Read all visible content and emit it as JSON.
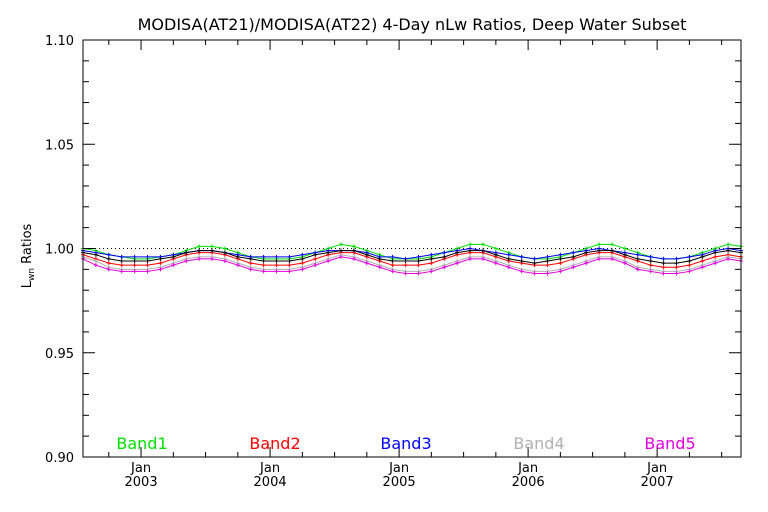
{
  "chart_data": {
    "type": "line",
    "title": "MODISA(AT21)/MODISA(AT22) 4-Day nLw Ratios, Deep Water Subset",
    "ylabel": "Lwn Ratios",
    "ylabel_main": "L",
    "ylabel_sub": "wn",
    "ylabel_rest": " Ratios",
    "xlabel": "",
    "ylim": [
      0.9,
      1.1
    ],
    "xlim": [
      2002.55,
      2007.65
    ],
    "yticks": [
      "0.90",
      "0.95",
      "1.00",
      "1.05",
      "1.10"
    ],
    "xticks": [
      {
        "month": "Jan",
        "year": "2003",
        "value": 2003.0
      },
      {
        "month": "Jan",
        "year": "2004",
        "value": 2004.0
      },
      {
        "month": "Jan",
        "year": "2005",
        "value": 2005.0
      },
      {
        "month": "Jan",
        "year": "2006",
        "value": 2006.0
      },
      {
        "month": "Jan",
        "year": "2007",
        "value": 2007.0
      }
    ],
    "reference_line": 1.0,
    "legend_placement": "bottom",
    "grid": false,
    "x": [
      2002.55,
      2002.65,
      2002.75,
      2002.85,
      2002.95,
      2003.05,
      2003.15,
      2003.25,
      2003.35,
      2003.45,
      2003.55,
      2003.65,
      2003.75,
      2003.85,
      2003.95,
      2004.05,
      2004.15,
      2004.25,
      2004.35,
      2004.45,
      2004.55,
      2004.65,
      2004.75,
      2004.85,
      2004.95,
      2005.05,
      2005.15,
      2005.25,
      2005.35,
      2005.45,
      2005.55,
      2005.65,
      2005.75,
      2005.85,
      2005.95,
      2006.05,
      2006.15,
      2006.25,
      2006.35,
      2006.45,
      2006.55,
      2006.65,
      2006.75,
      2006.85,
      2006.95,
      2007.05,
      2007.15,
      2007.25,
      2007.35,
      2007.45,
      2007.55,
      2007.65
    ],
    "series": [
      {
        "name": "Band1",
        "color": "#00e000",
        "values": [
          1.0,
          0.999,
          0.997,
          0.996,
          0.995,
          0.995,
          0.996,
          0.997,
          0.999,
          1.001,
          1.001,
          1.0,
          0.998,
          0.996,
          0.995,
          0.995,
          0.995,
          0.996,
          0.998,
          1.0,
          1.002,
          1.001,
          0.999,
          0.997,
          0.995,
          0.995,
          0.995,
          0.996,
          0.998,
          1.0,
          1.002,
          1.002,
          1.0,
          0.998,
          0.996,
          0.995,
          0.995,
          0.996,
          0.998,
          1.0,
          1.002,
          1.002,
          1.0,
          0.998,
          0.996,
          0.995,
          0.995,
          0.996,
          0.998,
          1.0,
          1.002,
          1.001
        ]
      },
      {
        "name": "Band2",
        "color": "#ff0000",
        "values": [
          0.997,
          0.995,
          0.993,
          0.992,
          0.992,
          0.992,
          0.993,
          0.995,
          0.997,
          0.998,
          0.998,
          0.997,
          0.995,
          0.993,
          0.992,
          0.992,
          0.992,
          0.993,
          0.995,
          0.997,
          0.998,
          0.998,
          0.996,
          0.994,
          0.992,
          0.992,
          0.992,
          0.993,
          0.995,
          0.997,
          0.998,
          0.998,
          0.996,
          0.994,
          0.993,
          0.992,
          0.992,
          0.993,
          0.995,
          0.997,
          0.998,
          0.998,
          0.996,
          0.994,
          0.992,
          0.991,
          0.991,
          0.992,
          0.994,
          0.996,
          0.997,
          0.996
        ]
      },
      {
        "name": "Band3",
        "color": "#0000ff",
        "values": [
          0.999,
          0.998,
          0.997,
          0.996,
          0.996,
          0.996,
          0.996,
          0.997,
          0.998,
          0.999,
          0.999,
          0.998,
          0.997,
          0.996,
          0.996,
          0.996,
          0.996,
          0.997,
          0.998,
          0.999,
          0.999,
          0.999,
          0.998,
          0.996,
          0.996,
          0.995,
          0.996,
          0.997,
          0.998,
          0.999,
          1.0,
          0.999,
          0.998,
          0.997,
          0.996,
          0.995,
          0.996,
          0.997,
          0.998,
          0.999,
          1.0,
          0.999,
          0.998,
          0.997,
          0.996,
          0.995,
          0.995,
          0.996,
          0.997,
          0.999,
          1.0,
          0.999
        ]
      },
      {
        "name": "Band4",
        "color": "#b0b0b0",
        "values": [
          0.996,
          0.994,
          0.991,
          0.99,
          0.99,
          0.99,
          0.991,
          0.993,
          0.995,
          0.996,
          0.996,
          0.995,
          0.993,
          0.991,
          0.99,
          0.99,
          0.99,
          0.991,
          0.993,
          0.995,
          0.997,
          0.996,
          0.994,
          0.992,
          0.99,
          0.989,
          0.989,
          0.99,
          0.992,
          0.994,
          0.996,
          0.996,
          0.994,
          0.992,
          0.99,
          0.989,
          0.989,
          0.99,
          0.992,
          0.994,
          0.996,
          0.996,
          0.994,
          0.991,
          0.99,
          0.989,
          0.989,
          0.99,
          0.992,
          0.994,
          0.996,
          0.995
        ]
      },
      {
        "name": "Band5",
        "color": "#e000e0",
        "values": [
          0.995,
          0.992,
          0.99,
          0.989,
          0.989,
          0.989,
          0.99,
          0.992,
          0.994,
          0.995,
          0.995,
          0.994,
          0.992,
          0.99,
          0.989,
          0.989,
          0.989,
          0.99,
          0.992,
          0.994,
          0.996,
          0.995,
          0.993,
          0.991,
          0.989,
          0.988,
          0.988,
          0.989,
          0.991,
          0.993,
          0.995,
          0.995,
          0.993,
          0.991,
          0.989,
          0.988,
          0.988,
          0.989,
          0.991,
          0.993,
          0.995,
          0.995,
          0.993,
          0.99,
          0.989,
          0.988,
          0.988,
          0.989,
          0.991,
          0.993,
          0.995,
          0.994
        ]
      },
      {
        "name": "",
        "color": "#000000",
        "values": [
          0.998,
          0.997,
          0.995,
          0.994,
          0.994,
          0.994,
          0.995,
          0.996,
          0.998,
          0.999,
          0.999,
          0.998,
          0.996,
          0.995,
          0.994,
          0.994,
          0.994,
          0.995,
          0.997,
          0.998,
          0.999,
          0.999,
          0.997,
          0.995,
          0.994,
          0.994,
          0.994,
          0.995,
          0.996,
          0.998,
          0.999,
          0.999,
          0.997,
          0.995,
          0.994,
          0.993,
          0.994,
          0.995,
          0.996,
          0.998,
          0.999,
          0.999,
          0.997,
          0.995,
          0.994,
          0.993,
          0.993,
          0.994,
          0.996,
          0.998,
          0.999,
          0.998
        ]
      }
    ]
  }
}
